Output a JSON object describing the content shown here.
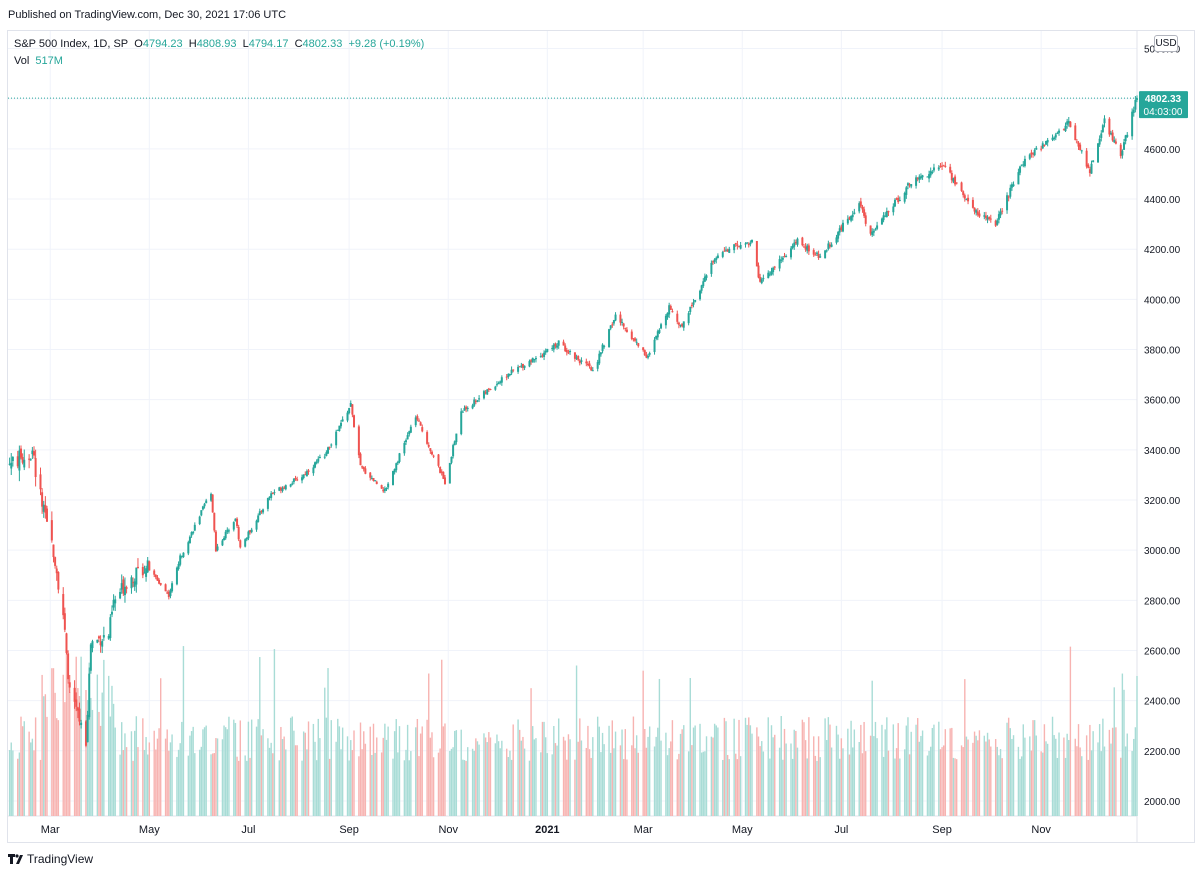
{
  "header": {
    "published": "Published on TradingView.com, Dec 30, 2021 17:06 UTC"
  },
  "legend": {
    "symbol": "S&P 500 Index, 1D, SP",
    "open_label": "O",
    "open": "4794.23",
    "high_label": "H",
    "high": "4808.93",
    "low_label": "L",
    "low": "4794.17",
    "close_label": "C",
    "close": "4802.33",
    "change": "+9.28 (+0.19%)",
    "vol_label": "Vol",
    "vol": "517M"
  },
  "currency_button": "USD",
  "price_tag": {
    "price": "4802.33",
    "countdown": "04:03:00"
  },
  "footer": {
    "brand": "TradingView"
  },
  "colors": {
    "up": "#26a69a",
    "down": "#ef5350",
    "up_vol": "#a8dcd6",
    "down_vol": "#f7b3b1",
    "grid": "#f0f3fa",
    "axis_text": "#131722"
  },
  "chart_data": {
    "type": "candlestick",
    "title": "S&P 500 Index, 1D, SP",
    "y_axis": {
      "side": "right",
      "ticks": [
        2000,
        2200,
        2400,
        2600,
        2800,
        3000,
        3200,
        3400,
        3600,
        3800,
        4000,
        4200,
        4400,
        4600,
        5000
      ],
      "tick_labels": [
        "2000.00",
        "2200.00",
        "2400.00",
        "2600.00",
        "2800.00",
        "3000.00",
        "3200.00",
        "3400.00",
        "3600.00",
        "3800.00",
        "4000.00",
        "4200.00",
        "4400.00",
        "4600.00",
        "5000.00"
      ],
      "range": [
        1940,
        5070
      ]
    },
    "x_axis": {
      "ticks": [
        "2020-03-01",
        "2020-05-01",
        "2020-07-01",
        "2020-09-01",
        "2020-11-01",
        "2021-01-01",
        "2021-03-01",
        "2021-05-01",
        "2021-07-01",
        "2021-09-01",
        "2021-11-01"
      ],
      "tick_labels": [
        "Mar",
        "May",
        "Jul",
        "Sep",
        "Nov",
        "2021",
        "Mar",
        "May",
        "Jul",
        "Sep",
        "Nov"
      ],
      "range": [
        "2020-02-04",
        "2021-12-30"
      ]
    },
    "last_price": 4802.33,
    "close_path": [
      [
        "2020-02-05",
        3345
      ],
      [
        "2020-02-19",
        3386
      ],
      [
        "2020-02-27",
        3116
      ],
      [
        "2020-03-03",
        3003
      ],
      [
        "2020-03-09",
        2746
      ],
      [
        "2020-03-12",
        2480
      ],
      [
        "2020-03-16",
        2386
      ],
      [
        "2020-03-23",
        2237
      ],
      [
        "2020-03-26",
        2630
      ],
      [
        "2020-04-06",
        2663
      ],
      [
        "2020-04-09",
        2789
      ],
      [
        "2020-04-17",
        2874
      ],
      [
        "2020-04-29",
        2939
      ],
      [
        "2020-05-13",
        2820
      ],
      [
        "2020-05-20",
        2971
      ],
      [
        "2020-06-05",
        3193
      ],
      [
        "2020-06-08",
        3232
      ],
      [
        "2020-06-11",
        3002
      ],
      [
        "2020-06-23",
        3131
      ],
      [
        "2020-06-26",
        3009
      ],
      [
        "2020-07-15",
        3226
      ],
      [
        "2020-08-03",
        3294
      ],
      [
        "2020-08-18",
        3389
      ],
      [
        "2020-09-02",
        3580
      ],
      [
        "2020-09-08",
        3331
      ],
      [
        "2020-09-23",
        3237
      ],
      [
        "2020-10-12",
        3534
      ],
      [
        "2020-10-30",
        3270
      ],
      [
        "2020-11-09",
        3550
      ],
      [
        "2020-12-08",
        3702
      ],
      [
        "2021-01-08",
        3825
      ],
      [
        "2021-01-29",
        3714
      ],
      [
        "2021-02-12",
        3934
      ],
      [
        "2021-03-04",
        3768
      ],
      [
        "2021-03-17",
        3974
      ],
      [
        "2021-03-24",
        3889
      ],
      [
        "2021-04-16",
        4185
      ],
      [
        "2021-05-07",
        4232
      ],
      [
        "2021-05-12",
        4063
      ],
      [
        "2021-06-04",
        4230
      ],
      [
        "2021-06-18",
        4166
      ],
      [
        "2021-07-12",
        4384
      ],
      [
        "2021-07-19",
        4258
      ],
      [
        "2021-08-13",
        4468
      ],
      [
        "2021-09-02",
        4537
      ],
      [
        "2021-09-20",
        4358
      ],
      [
        "2021-10-04",
        4300
      ],
      [
        "2021-10-21",
        4549
      ],
      [
        "2021-11-18",
        4704
      ],
      [
        "2021-12-01",
        4513
      ],
      [
        "2021-12-10",
        4712
      ],
      [
        "2021-12-20",
        4568
      ],
      [
        "2021-12-29",
        4793
      ],
      [
        "2021-12-30",
        4802.33
      ]
    ],
    "volume": {
      "type": "bar",
      "unit": "shares",
      "last": "517M"
    }
  }
}
